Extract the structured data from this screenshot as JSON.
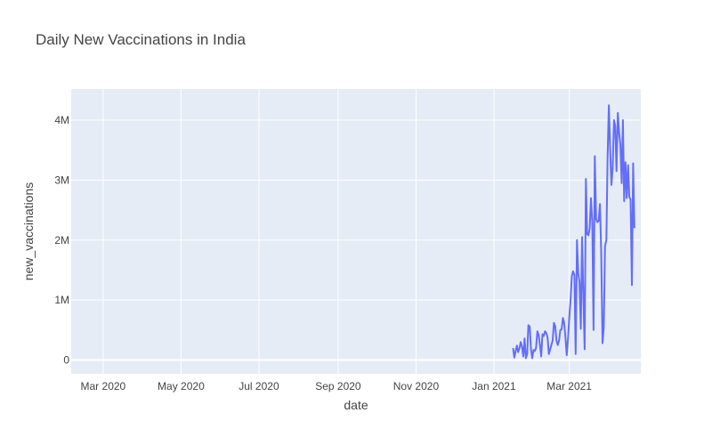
{
  "chart_data": {
    "type": "line",
    "title": "Daily New Vaccinations in India",
    "xlabel": "date",
    "ylabel": "new_vaccinations",
    "x_ticks": [
      "Mar 2020",
      "May 2020",
      "Jul 2020",
      "Sep 2020",
      "Nov 2020",
      "Jan 2021",
      "Mar 2021"
    ],
    "x_tick_dates": [
      "2020-03-01",
      "2020-05-01",
      "2020-07-01",
      "2020-09-01",
      "2020-11-01",
      "2021-01-01",
      "2021-03-01"
    ],
    "xlim": [
      "2020-02-05",
      "2021-04-26"
    ],
    "y_ticks": [
      "0",
      "1M",
      "2M",
      "3M",
      "4M"
    ],
    "y_tick_values": [
      0,
      1000000,
      2000000,
      3000000,
      4000000
    ],
    "ylim": [
      -230000,
      4520000
    ],
    "grid": true,
    "background": "#e5ecf6",
    "line_color": "#636efa",
    "series": [
      {
        "points": [
          [
            "2021-01-16",
            200000
          ],
          [
            "2021-01-17",
            40000
          ],
          [
            "2021-01-18",
            150000
          ],
          [
            "2021-01-19",
            240000
          ],
          [
            "2021-01-20",
            130000
          ],
          [
            "2021-01-21",
            200000
          ],
          [
            "2021-01-22",
            300000
          ],
          [
            "2021-01-23",
            220000
          ],
          [
            "2021-01-24",
            60000
          ],
          [
            "2021-01-25",
            360000
          ],
          [
            "2021-01-26",
            30000
          ],
          [
            "2021-01-27",
            100000
          ],
          [
            "2021-01-28",
            580000
          ],
          [
            "2021-01-29",
            560000
          ],
          [
            "2021-01-30",
            180000
          ],
          [
            "2021-01-31",
            30000
          ],
          [
            "2021-02-01",
            170000
          ],
          [
            "2021-02-02",
            150000
          ],
          [
            "2021-02-03",
            200000
          ],
          [
            "2021-02-04",
            480000
          ],
          [
            "2021-02-05",
            420000
          ],
          [
            "2021-02-06",
            260000
          ],
          [
            "2021-02-07",
            60000
          ],
          [
            "2021-02-08",
            430000
          ],
          [
            "2021-02-09",
            400000
          ],
          [
            "2021-02-10",
            480000
          ],
          [
            "2021-02-11",
            450000
          ],
          [
            "2021-02-12",
            380000
          ],
          [
            "2021-02-13",
            100000
          ],
          [
            "2021-02-16",
            330000
          ],
          [
            "2021-02-17",
            620000
          ],
          [
            "2021-02-18",
            560000
          ],
          [
            "2021-02-19",
            320000
          ],
          [
            "2021-02-20",
            250000
          ],
          [
            "2021-02-21",
            330000
          ],
          [
            "2021-02-22",
            500000
          ],
          [
            "2021-02-23",
            510000
          ],
          [
            "2021-02-24",
            700000
          ],
          [
            "2021-02-25",
            620000
          ],
          [
            "2021-02-26",
            380000
          ],
          [
            "2021-02-27",
            80000
          ],
          [
            "2021-02-28",
            350000
          ],
          [
            "2021-03-01",
            700000
          ],
          [
            "2021-03-02",
            1000000
          ],
          [
            "2021-03-03",
            1400000
          ],
          [
            "2021-03-04",
            1480000
          ],
          [
            "2021-03-05",
            1420000
          ],
          [
            "2021-03-06",
            100000
          ],
          [
            "2021-03-07",
            2000000
          ],
          [
            "2021-03-08",
            1450000
          ],
          [
            "2021-03-09",
            1300000
          ],
          [
            "2021-03-10",
            520000
          ],
          [
            "2021-03-11",
            2050000
          ],
          [
            "2021-03-12",
            1100000
          ],
          [
            "2021-03-13",
            180000
          ],
          [
            "2021-03-14",
            3020000
          ],
          [
            "2021-03-15",
            2100000
          ],
          [
            "2021-03-16",
            2080000
          ],
          [
            "2021-03-17",
            2200000
          ],
          [
            "2021-03-18",
            2700000
          ],
          [
            "2021-03-19",
            2300000
          ],
          [
            "2021-03-20",
            500000
          ],
          [
            "2021-03-21",
            3400000
          ],
          [
            "2021-03-22",
            2350000
          ],
          [
            "2021-03-23",
            2300000
          ],
          [
            "2021-03-24",
            2320000
          ],
          [
            "2021-03-25",
            2600000
          ],
          [
            "2021-03-26",
            1800000
          ],
          [
            "2021-03-27",
            280000
          ],
          [
            "2021-03-28",
            550000
          ],
          [
            "2021-03-29",
            1900000
          ],
          [
            "2021-03-30",
            2000000
          ],
          [
            "2021-03-31",
            3400000
          ],
          [
            "2021-04-01",
            4250000
          ],
          [
            "2021-04-02",
            3500000
          ],
          [
            "2021-04-03",
            2920000
          ],
          [
            "2021-04-04",
            3200000
          ],
          [
            "2021-04-05",
            4000000
          ],
          [
            "2021-04-06",
            3900000
          ],
          [
            "2021-04-07",
            3150000
          ],
          [
            "2021-04-08",
            4120000
          ],
          [
            "2021-04-09",
            3800000
          ],
          [
            "2021-04-10",
            3600000
          ],
          [
            "2021-04-11",
            2950000
          ],
          [
            "2021-04-12",
            4000000
          ],
          [
            "2021-04-13",
            2650000
          ],
          [
            "2021-04-14",
            3300000
          ],
          [
            "2021-04-15",
            2700000
          ],
          [
            "2021-04-16",
            3250000
          ],
          [
            "2021-04-17",
            2720000
          ],
          [
            "2021-04-18",
            2680000
          ],
          [
            "2021-04-19",
            1250000
          ],
          [
            "2021-04-20",
            3280000
          ],
          [
            "2021-04-21",
            2200000
          ]
        ]
      }
    ]
  }
}
